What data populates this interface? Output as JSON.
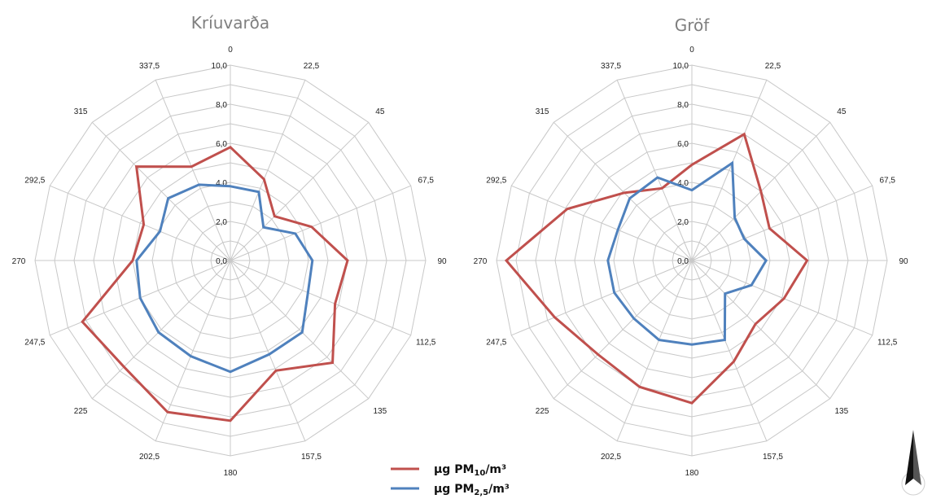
{
  "chart_data": [
    {
      "type": "radar",
      "title": "Kríuvarða",
      "angle_labels": [
        "0",
        "22,5",
        "45",
        "67,5",
        "90",
        "112,5",
        "135",
        "157,5",
        "180",
        "202,5",
        "225",
        "247,5",
        "270",
        "292,5",
        "315",
        "337,5"
      ],
      "r_ticks": [
        "0,0",
        "2,0",
        "4,0",
        "6,0",
        "8,0",
        "10,0"
      ],
      "rlim": [
        0,
        10
      ],
      "series": [
        {
          "color": "#c0504d",
          "values": [
            5.8,
            4.5,
            3.2,
            4.5,
            6.0,
            5.8,
            7.4,
            6.1,
            8.2,
            8.4,
            7.7,
            8.2,
            5.0,
            4.8,
            6.8,
            5.2
          ]
        },
        {
          "color": "#4f81bd",
          "values": [
            3.8,
            3.8,
            2.4,
            3.6,
            4.2,
            4.3,
            5.2,
            5.2,
            5.7,
            5.3,
            5.2,
            5.0,
            4.8,
            3.9,
            4.5,
            4.2
          ]
        }
      ]
    },
    {
      "type": "radar",
      "title": "Gröf",
      "angle_labels": [
        "0",
        "22,5",
        "45",
        "67,5",
        "90",
        "112,5",
        "135",
        "157,5",
        "180",
        "202,5",
        "225",
        "247,5",
        "270",
        "292,5",
        "315",
        "337,5"
      ],
      "r_ticks": [
        "0,0",
        "2,0",
        "4,0",
        "6,0",
        "8,0",
        "10,0"
      ],
      "rlim": [
        0,
        10
      ],
      "series": [
        {
          "color": "#c0504d",
          "values": [
            4.9,
            7.0,
            5.0,
            4.3,
            5.9,
            5.1,
            4.6,
            5.6,
            7.3,
            7.0,
            6.8,
            7.6,
            9.5,
            6.9,
            4.9,
            4.0
          ]
        },
        {
          "color": "#4f81bd",
          "values": [
            3.6,
            5.4,
            3.1,
            2.9,
            3.8,
            3.3,
            2.4,
            4.4,
            4.3,
            4.4,
            4.2,
            4.3,
            4.3,
            4.1,
            4.5,
            4.6
          ]
        }
      ]
    }
  ],
  "legend": {
    "items": [
      {
        "color": "#c0504d",
        "prefix": "µg PM",
        "sub": "10",
        "suffix": "/m³"
      },
      {
        "color": "#4f81bd",
        "prefix": "µg PM",
        "sub": "2,5",
        "suffix": "/m³"
      }
    ]
  },
  "compass": {
    "label": "N"
  }
}
